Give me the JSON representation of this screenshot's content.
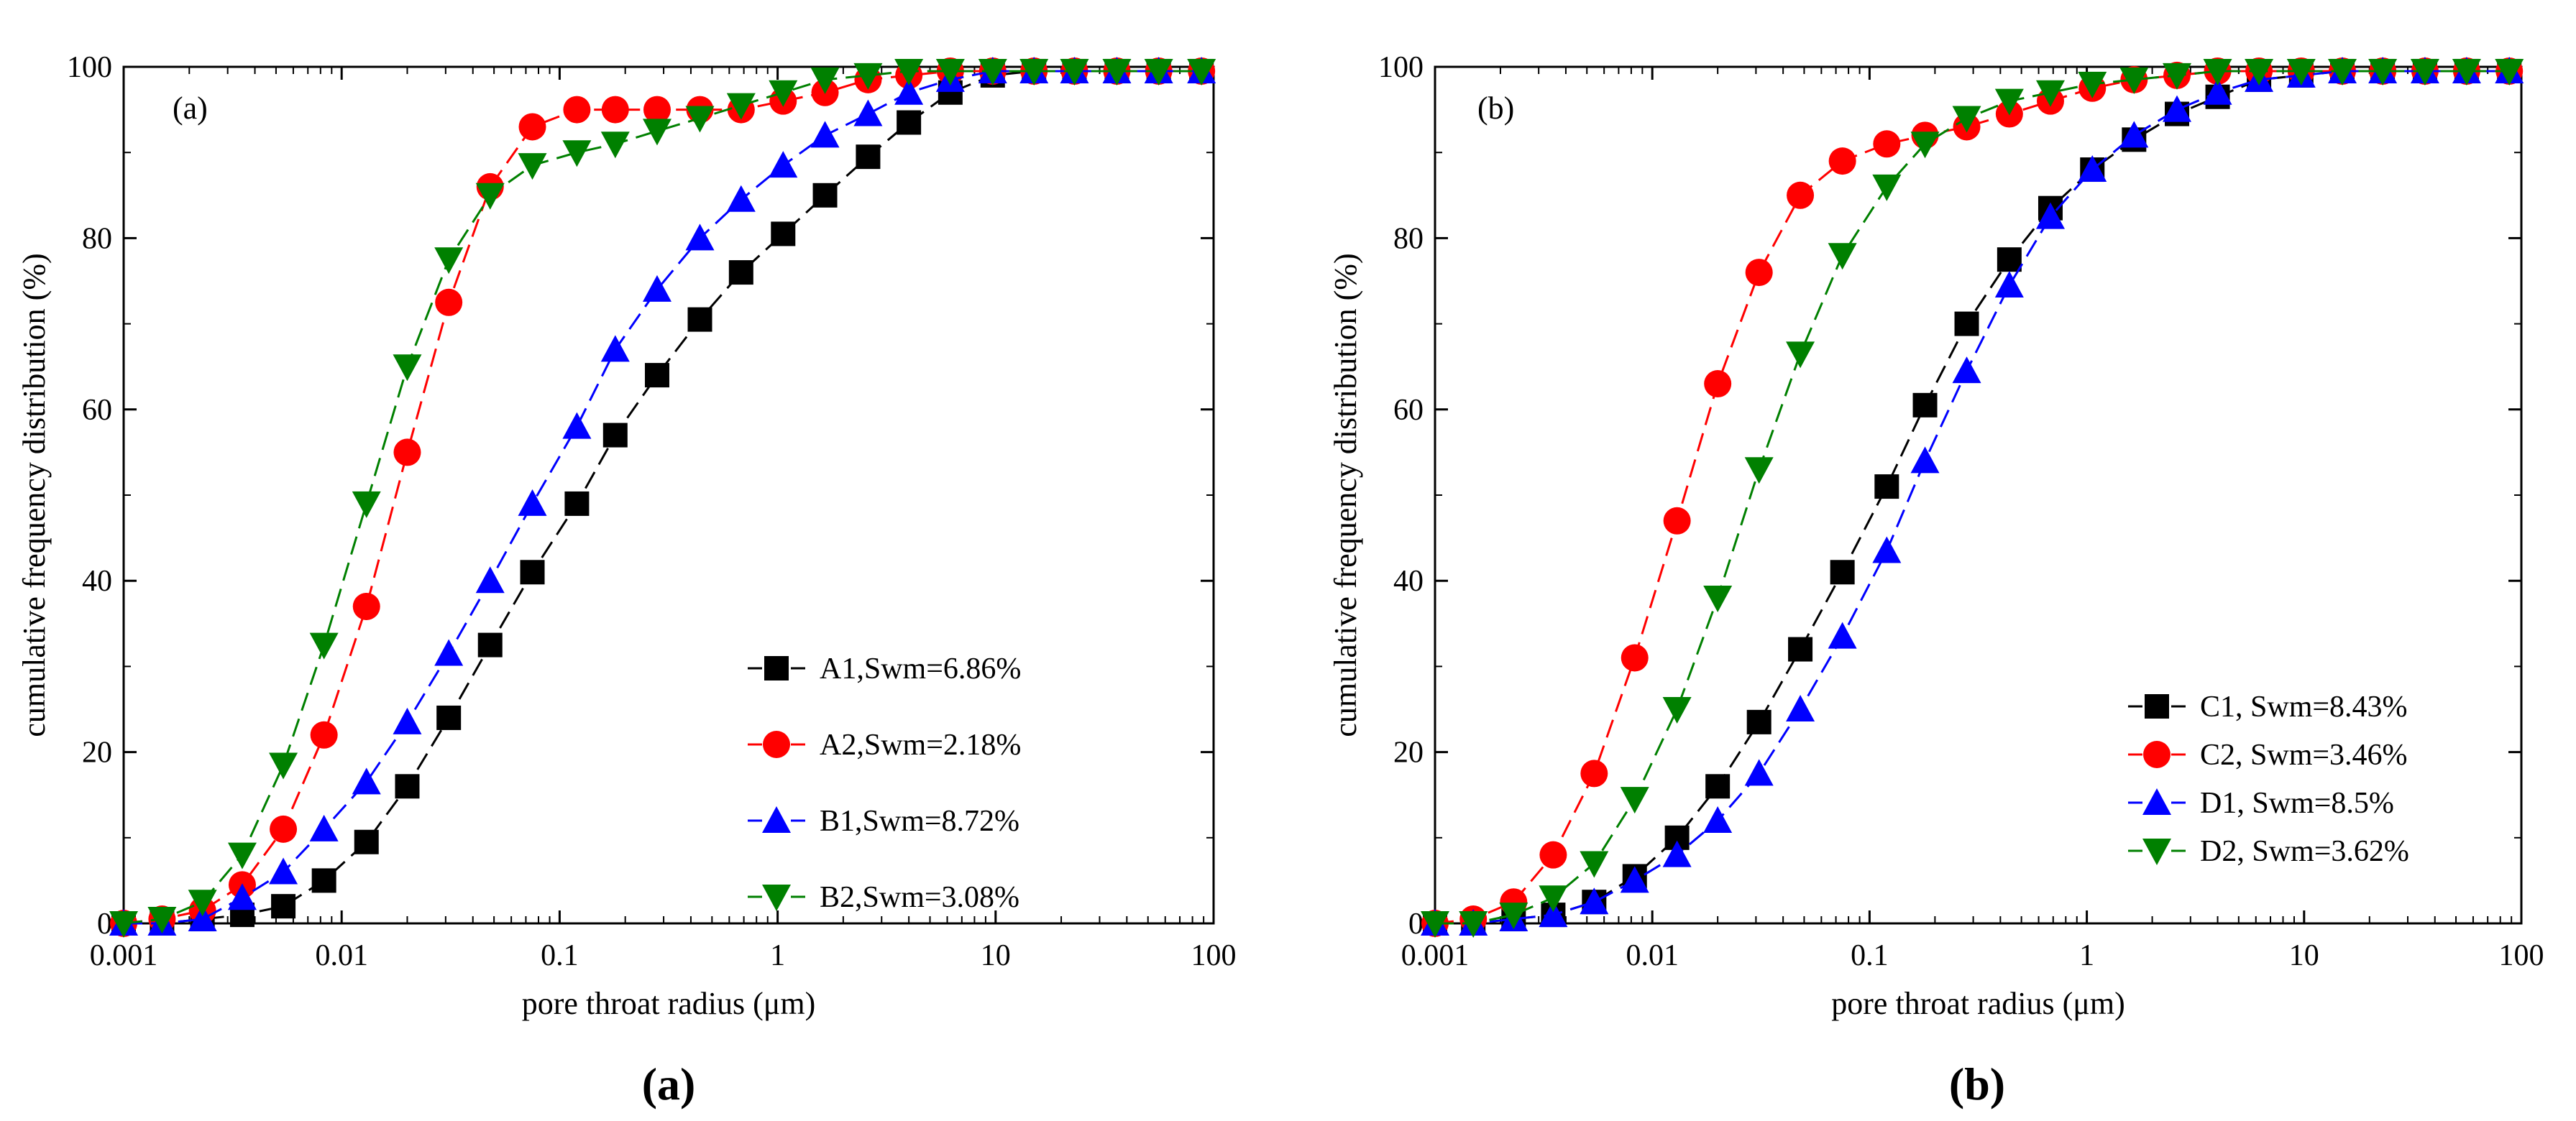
{
  "chart_data": [
    {
      "type": "line",
      "panel_label": "(a)",
      "caption": "(a)",
      "xlabel": "pore throat radius (μm)",
      "ylabel": "cumulative frequency distribution (%)",
      "xscale": "log",
      "xlim": [
        0.001,
        100
      ],
      "ylim": [
        0,
        100
      ],
      "xticks": [
        "0.001",
        "0.01",
        "0.1",
        "1",
        "10",
        "100"
      ],
      "yticks": [
        "0",
        "20",
        "40",
        "60",
        "80",
        "100"
      ],
      "legend_position": "lower-right",
      "x": [
        0.001,
        0.0015,
        0.0023,
        0.0035,
        0.0054,
        0.0083,
        0.013,
        0.02,
        0.031,
        0.048,
        0.075,
        0.12,
        0.18,
        0.28,
        0.44,
        0.68,
        1.06,
        1.65,
        2.6,
        4.0,
        6.2,
        9.7,
        15,
        23,
        36,
        56,
        88
      ],
      "series": [
        {
          "name": "A1,Swm=6.86%",
          "label": "A1,Swm=6.86%",
          "color": "#000000",
          "marker": "square",
          "values": [
            0,
            0,
            0.5,
            1,
            2,
            5,
            9.5,
            16,
            24,
            32.5,
            41,
            49,
            57,
            64,
            70.5,
            76,
            80.5,
            85,
            89.5,
            93.5,
            97,
            99,
            99.5,
            99.5,
            99.5,
            99.5,
            99.5
          ]
        },
        {
          "name": "A2,Swm=2.18%",
          "label": "A2,Swm=2.18%",
          "color": "#ff0000",
          "marker": "circle",
          "values": [
            0,
            0.5,
            1.5,
            4.5,
            11,
            22,
            37,
            55,
            72.5,
            86,
            93,
            95,
            95,
            95,
            95,
            95,
            96,
            97,
            98.5,
            99,
            99.5,
            99.5,
            99.5,
            99.5,
            99.5,
            99.5,
            99.5
          ]
        },
        {
          "name": "B1,Swm=8.72%",
          "label": "B1,Swm=8.72%",
          "color": "#0000ff",
          "marker": "triangle-up",
          "values": [
            0,
            0,
            0.5,
            3,
            6,
            11,
            16.5,
            23.5,
            31.5,
            40,
            49,
            58,
            67,
            74,
            80,
            84.5,
            88.5,
            92,
            94.5,
            97,
            98.5,
            99.5,
            99.5,
            99.5,
            99.5,
            99.5,
            99.5
          ]
        },
        {
          "name": "B2,Swm=3.08%",
          "label": "B2,Swm=3.08%",
          "color": "#008000",
          "marker": "triangle-down",
          "values": [
            0,
            0.5,
            2.5,
            8,
            18.5,
            32.5,
            49,
            65,
            77.5,
            85,
            88.5,
            90,
            91,
            92.5,
            94,
            95.5,
            97,
            98.5,
            99,
            99.5,
            99.5,
            99.5,
            99.5,
            99.5,
            99.5,
            99.5,
            99.5
          ]
        }
      ]
    },
    {
      "type": "line",
      "panel_label": "(b)",
      "caption": "(b)",
      "xlabel": "pore throat radius (μm)",
      "ylabel": "cumulative frequency distribution (%)",
      "xscale": "log",
      "xlim": [
        0.001,
        100
      ],
      "ylim": [
        0,
        100
      ],
      "xticks": [
        "0.001",
        "0.01",
        "0.1",
        "1",
        "10",
        "100"
      ],
      "yticks": [
        "0",
        "20",
        "40",
        "60",
        "80",
        "100"
      ],
      "legend_position": "lower-right",
      "x": [
        0.001,
        0.0015,
        0.0023,
        0.0035,
        0.0054,
        0.0083,
        0.013,
        0.02,
        0.031,
        0.048,
        0.075,
        0.12,
        0.18,
        0.28,
        0.44,
        0.68,
        1.06,
        1.65,
        2.6,
        4.0,
        6.2,
        9.7,
        15,
        23,
        36,
        56,
        88
      ],
      "series": [
        {
          "name": "C1, Swm=8.43%",
          "label": "C1, Swm=8.43%",
          "color": "#000000",
          "marker": "square",
          "values": [
            0,
            0,
            0.5,
            1,
            2.5,
            5.5,
            10,
            16,
            23.5,
            32,
            41,
            51,
            60.5,
            70,
            77.5,
            83.5,
            88,
            91.5,
            94.5,
            96.5,
            98.5,
            99,
            99.5,
            99.5,
            99.5,
            99.5,
            99.5
          ]
        },
        {
          "name": "C2, Swm=3.46%",
          "label": "C2, Swm=3.46%",
          "color": "#ff0000",
          "marker": "circle",
          "values": [
            0,
            0.5,
            2.5,
            8,
            17.5,
            31,
            47,
            63,
            76,
            85,
            89,
            91,
            92,
            93,
            94.5,
            96,
            97.5,
            98.5,
            99,
            99.5,
            99.5,
            99.5,
            99.5,
            99.5,
            99.5,
            99.5,
            99.5
          ]
        },
        {
          "name": "D1, Swm=8.5%",
          "label": "D1, Swm=8.5%",
          "color": "#0000ff",
          "marker": "triangle-up",
          "values": [
            0,
            0,
            0.5,
            1,
            2.5,
            5,
            8,
            12,
            17.5,
            25,
            33.5,
            43.5,
            54,
            64.5,
            74.5,
            82.5,
            88,
            92,
            95,
            97,
            98.5,
            99,
            99.5,
            99.5,
            99.5,
            99.5,
            99.5
          ]
        },
        {
          "name": "D2, Swm=3.62%",
          "label": "D2, Swm=3.62%",
          "color": "#008000",
          "marker": "triangle-down",
          "values": [
            0,
            0,
            1,
            3,
            7,
            14.5,
            25,
            38,
            53,
            66.5,
            78,
            86,
            91,
            94,
            96,
            97,
            98,
            98.5,
            99,
            99.5,
            99.5,
            99.5,
            99.5,
            99.5,
            99.5,
            99.5,
            99.5
          ]
        }
      ]
    }
  ]
}
